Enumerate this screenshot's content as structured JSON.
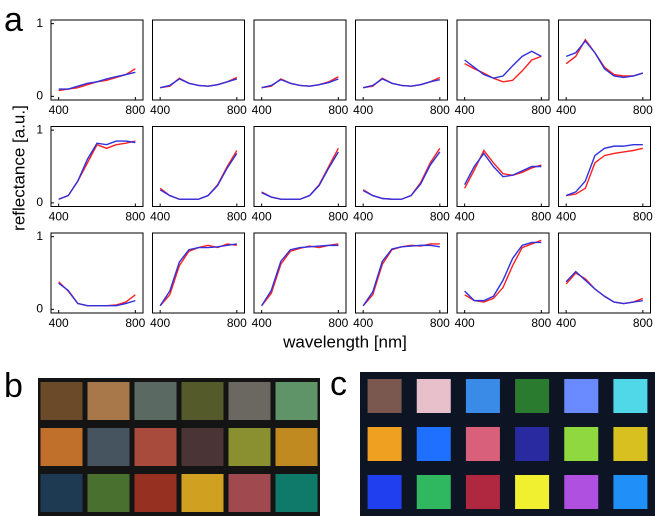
{
  "figure": {
    "panel_a_label": "a",
    "y_label": "reflectance [a.u.]",
    "x_label": "wavelength [nm]",
    "panel_b": {
      "label": "b",
      "colors": [
        "#6b4a2a",
        "#a8784a",
        "#5a6a62",
        "#555a2a",
        "#6a6860",
        "#5e9468",
        "#c0702a",
        "#465460",
        "#a84a3c",
        "#4a3436",
        "#8a9030",
        "#c08a20",
        "#1e3a52",
        "#4a7030",
        "#963020",
        "#d0a020",
        "#a04a50",
        "#107a6a"
      ]
    },
    "panel_c": {
      "label": "c",
      "colors": [
        "#7a5850",
        "#e8c0cc",
        "#3a8ae8",
        "#2a7a30",
        "#6a8aff",
        "#50d8e8",
        "#f0a020",
        "#2070ff",
        "#d8607a",
        "#2a2aa0",
        "#90d840",
        "#d8c020",
        "#2040f0",
        "#30b860",
        "#b02840",
        "#f0f030",
        "#b050e0",
        "#2090f8"
      ]
    }
  },
  "chart_data": [
    {
      "type": "line",
      "x": [
        400,
        450,
        500,
        550,
        600,
        650,
        700,
        750,
        800
      ],
      "xlim": [
        360,
        840
      ],
      "ylim": [
        -0.05,
        1.05
      ],
      "xticks": [
        400,
        800
      ],
      "yticks": [
        0,
        1
      ],
      "series": [
        {
          "color": "#ff2020",
          "values": [
            0.08,
            0.1,
            0.12,
            0.16,
            0.2,
            0.22,
            0.26,
            0.3,
            0.38
          ]
        },
        {
          "color": "#3030e0",
          "values": [
            0.1,
            0.1,
            0.14,
            0.18,
            0.2,
            0.24,
            0.27,
            0.3,
            0.33
          ]
        }
      ]
    },
    {
      "type": "line",
      "x": [
        400,
        450,
        500,
        550,
        600,
        650,
        700,
        750,
        800
      ],
      "xlim": [
        360,
        840
      ],
      "ylim": [
        -0.05,
        1.05
      ],
      "xticks": [
        400,
        800
      ],
      "series": [
        {
          "color": "#ff2020",
          "values": [
            0.12,
            0.14,
            0.25,
            0.18,
            0.15,
            0.14,
            0.16,
            0.2,
            0.26
          ]
        },
        {
          "color": "#3030e0",
          "values": [
            0.12,
            0.15,
            0.24,
            0.18,
            0.15,
            0.14,
            0.16,
            0.2,
            0.24
          ]
        }
      ]
    },
    {
      "type": "line",
      "x": [
        400,
        450,
        500,
        550,
        600,
        650,
        700,
        750,
        800
      ],
      "xlim": [
        360,
        840
      ],
      "ylim": [
        -0.05,
        1.05
      ],
      "xticks": [
        400,
        800
      ],
      "series": [
        {
          "color": "#ff2020",
          "values": [
            0.12,
            0.14,
            0.24,
            0.18,
            0.15,
            0.14,
            0.16,
            0.2,
            0.27
          ]
        },
        {
          "color": "#3030e0",
          "values": [
            0.12,
            0.15,
            0.23,
            0.18,
            0.15,
            0.14,
            0.16,
            0.19,
            0.24
          ]
        }
      ]
    },
    {
      "type": "line",
      "x": [
        400,
        450,
        500,
        550,
        600,
        650,
        700,
        750,
        800
      ],
      "xlim": [
        360,
        840
      ],
      "ylim": [
        -0.05,
        1.05
      ],
      "xticks": [
        400,
        800
      ],
      "series": [
        {
          "color": "#ff2020",
          "values": [
            0.12,
            0.14,
            0.25,
            0.18,
            0.15,
            0.14,
            0.16,
            0.2,
            0.26
          ]
        },
        {
          "color": "#3030e0",
          "values": [
            0.12,
            0.15,
            0.24,
            0.18,
            0.15,
            0.14,
            0.16,
            0.2,
            0.23
          ]
        }
      ]
    },
    {
      "type": "line",
      "x": [
        400,
        450,
        500,
        550,
        600,
        650,
        700,
        750,
        800
      ],
      "xlim": [
        360,
        840
      ],
      "ylim": [
        -0.05,
        1.05
      ],
      "xticks": [
        400,
        800
      ],
      "series": [
        {
          "color": "#ff2020",
          "values": [
            0.45,
            0.38,
            0.32,
            0.25,
            0.2,
            0.22,
            0.35,
            0.5,
            0.55
          ]
        },
        {
          "color": "#3030e0",
          "values": [
            0.5,
            0.4,
            0.3,
            0.25,
            0.28,
            0.42,
            0.55,
            0.62,
            0.55
          ]
        }
      ]
    },
    {
      "type": "line",
      "x": [
        400,
        450,
        500,
        550,
        600,
        650,
        700,
        750,
        800
      ],
      "xlim": [
        360,
        840
      ],
      "ylim": [
        -0.05,
        1.05
      ],
      "xticks": [
        400,
        800
      ],
      "series": [
        {
          "color": "#ff2020",
          "values": [
            0.45,
            0.55,
            0.78,
            0.6,
            0.4,
            0.3,
            0.28,
            0.28,
            0.32
          ]
        },
        {
          "color": "#3030e0",
          "values": [
            0.55,
            0.6,
            0.76,
            0.6,
            0.38,
            0.28,
            0.26,
            0.28,
            0.32
          ]
        }
      ]
    },
    {
      "type": "line",
      "x": [
        400,
        450,
        500,
        550,
        600,
        650,
        700,
        750,
        800
      ],
      "xlim": [
        360,
        840
      ],
      "ylim": [
        -0.05,
        1.05
      ],
      "xticks": [
        400,
        800
      ],
      "yticks": [
        0,
        1
      ],
      "series": [
        {
          "color": "#ff2020",
          "values": [
            0.05,
            0.1,
            0.3,
            0.55,
            0.8,
            0.75,
            0.8,
            0.82,
            0.85
          ]
        },
        {
          "color": "#3030e0",
          "values": [
            0.05,
            0.1,
            0.3,
            0.6,
            0.82,
            0.8,
            0.85,
            0.85,
            0.83
          ]
        }
      ]
    },
    {
      "type": "line",
      "x": [
        400,
        450,
        500,
        550,
        600,
        650,
        700,
        750,
        800
      ],
      "xlim": [
        360,
        840
      ],
      "ylim": [
        -0.05,
        1.05
      ],
      "xticks": [
        400,
        800
      ],
      "series": [
        {
          "color": "#ff2020",
          "values": [
            0.2,
            0.1,
            0.05,
            0.05,
            0.05,
            0.1,
            0.25,
            0.5,
            0.72
          ]
        },
        {
          "color": "#3030e0",
          "values": [
            0.18,
            0.1,
            0.05,
            0.05,
            0.05,
            0.1,
            0.24,
            0.48,
            0.68
          ]
        }
      ]
    },
    {
      "type": "line",
      "x": [
        400,
        450,
        500,
        550,
        600,
        650,
        700,
        750,
        800
      ],
      "xlim": [
        360,
        840
      ],
      "ylim": [
        -0.05,
        1.05
      ],
      "xticks": [
        400,
        800
      ],
      "series": [
        {
          "color": "#ff2020",
          "values": [
            0.15,
            0.08,
            0.05,
            0.05,
            0.05,
            0.1,
            0.25,
            0.5,
            0.75
          ]
        },
        {
          "color": "#3030e0",
          "values": [
            0.14,
            0.08,
            0.05,
            0.05,
            0.05,
            0.1,
            0.24,
            0.48,
            0.7
          ]
        }
      ]
    },
    {
      "type": "line",
      "x": [
        400,
        450,
        500,
        550,
        600,
        650,
        700,
        750,
        800
      ],
      "xlim": [
        360,
        840
      ],
      "ylim": [
        -0.05,
        1.05
      ],
      "xticks": [
        400,
        800
      ],
      "series": [
        {
          "color": "#ff2020",
          "values": [
            0.18,
            0.1,
            0.06,
            0.05,
            0.05,
            0.1,
            0.28,
            0.55,
            0.75
          ]
        },
        {
          "color": "#3030e0",
          "values": [
            0.17,
            0.1,
            0.06,
            0.05,
            0.05,
            0.1,
            0.26,
            0.52,
            0.7
          ]
        }
      ]
    },
    {
      "type": "line",
      "x": [
        400,
        450,
        500,
        550,
        600,
        650,
        700,
        750,
        800
      ],
      "xlim": [
        360,
        840
      ],
      "ylim": [
        -0.05,
        1.05
      ],
      "xticks": [
        400,
        800
      ],
      "series": [
        {
          "color": "#ff2020",
          "values": [
            0.2,
            0.45,
            0.72,
            0.55,
            0.4,
            0.38,
            0.42,
            0.48,
            0.52
          ]
        },
        {
          "color": "#3030e0",
          "values": [
            0.25,
            0.5,
            0.68,
            0.5,
            0.36,
            0.38,
            0.44,
            0.5,
            0.5
          ]
        }
      ]
    },
    {
      "type": "line",
      "x": [
        400,
        450,
        500,
        550,
        600,
        650,
        700,
        750,
        800
      ],
      "xlim": [
        360,
        840
      ],
      "ylim": [
        -0.05,
        1.05
      ],
      "xticks": [
        400,
        800
      ],
      "series": [
        {
          "color": "#ff2020",
          "values": [
            0.1,
            0.12,
            0.2,
            0.55,
            0.65,
            0.68,
            0.7,
            0.72,
            0.75
          ]
        },
        {
          "color": "#3030e0",
          "values": [
            0.1,
            0.15,
            0.3,
            0.65,
            0.75,
            0.78,
            0.78,
            0.8,
            0.8
          ]
        }
      ]
    },
    {
      "type": "line",
      "x": [
        400,
        450,
        500,
        550,
        600,
        650,
        700,
        750,
        800
      ],
      "xlim": [
        360,
        840
      ],
      "ylim": [
        -0.05,
        1.05
      ],
      "xticks": [
        400,
        800
      ],
      "yticks": [
        0,
        1
      ],
      "series": [
        {
          "color": "#ff2020",
          "values": [
            0.38,
            0.25,
            0.08,
            0.05,
            0.05,
            0.05,
            0.06,
            0.1,
            0.2
          ]
        },
        {
          "color": "#3030e0",
          "values": [
            0.36,
            0.26,
            0.08,
            0.05,
            0.05,
            0.05,
            0.05,
            0.08,
            0.12
          ]
        }
      ]
    },
    {
      "type": "line",
      "x": [
        400,
        450,
        500,
        550,
        600,
        650,
        700,
        750,
        800
      ],
      "xlim": [
        360,
        840
      ],
      "ylim": [
        -0.05,
        1.05
      ],
      "xticks": [
        400,
        800
      ],
      "series": [
        {
          "color": "#ff2020",
          "values": [
            0.05,
            0.2,
            0.6,
            0.8,
            0.85,
            0.88,
            0.85,
            0.9,
            0.88
          ]
        },
        {
          "color": "#3030e0",
          "values": [
            0.05,
            0.25,
            0.65,
            0.82,
            0.85,
            0.85,
            0.86,
            0.88,
            0.9
          ]
        }
      ]
    },
    {
      "type": "line",
      "x": [
        400,
        450,
        500,
        550,
        600,
        650,
        700,
        750,
        800
      ],
      "xlim": [
        360,
        840
      ],
      "ylim": [
        -0.05,
        1.05
      ],
      "xticks": [
        400,
        800
      ],
      "series": [
        {
          "color": "#ff2020",
          "values": [
            0.05,
            0.22,
            0.62,
            0.8,
            0.84,
            0.87,
            0.85,
            0.88,
            0.9
          ]
        },
        {
          "color": "#3030e0",
          "values": [
            0.05,
            0.26,
            0.66,
            0.82,
            0.85,
            0.86,
            0.87,
            0.88,
            0.88
          ]
        }
      ]
    },
    {
      "type": "line",
      "x": [
        400,
        450,
        500,
        550,
        600,
        650,
        700,
        750,
        800
      ],
      "xlim": [
        360,
        840
      ],
      "ylim": [
        -0.05,
        1.05
      ],
      "xticks": [
        400,
        800
      ],
      "series": [
        {
          "color": "#ff2020",
          "values": [
            0.05,
            0.2,
            0.62,
            0.82,
            0.86,
            0.88,
            0.87,
            0.9,
            0.9
          ]
        },
        {
          "color": "#3030e0",
          "values": [
            0.05,
            0.24,
            0.66,
            0.83,
            0.86,
            0.87,
            0.88,
            0.88,
            0.86
          ]
        }
      ]
    },
    {
      "type": "line",
      "x": [
        400,
        450,
        500,
        550,
        600,
        650,
        700,
        750,
        800
      ],
      "xlim": [
        360,
        840
      ],
      "ylim": [
        -0.05,
        1.05
      ],
      "xticks": [
        400,
        800
      ],
      "series": [
        {
          "color": "#ff2020",
          "values": [
            0.2,
            0.12,
            0.1,
            0.15,
            0.3,
            0.6,
            0.85,
            0.9,
            0.95
          ]
        },
        {
          "color": "#3030e0",
          "values": [
            0.25,
            0.12,
            0.12,
            0.18,
            0.4,
            0.7,
            0.88,
            0.92,
            0.92
          ]
        }
      ]
    },
    {
      "type": "line",
      "x": [
        400,
        450,
        500,
        550,
        600,
        650,
        700,
        750,
        800
      ],
      "xlim": [
        360,
        840
      ],
      "ylim": [
        -0.05,
        1.05
      ],
      "xticks": [
        400,
        800
      ],
      "series": [
        {
          "color": "#ff2020",
          "values": [
            0.35,
            0.5,
            0.42,
            0.28,
            0.18,
            0.1,
            0.08,
            0.1,
            0.15
          ]
        },
        {
          "color": "#3030e0",
          "values": [
            0.38,
            0.52,
            0.4,
            0.28,
            0.18,
            0.1,
            0.08,
            0.1,
            0.12
          ]
        }
      ]
    }
  ]
}
